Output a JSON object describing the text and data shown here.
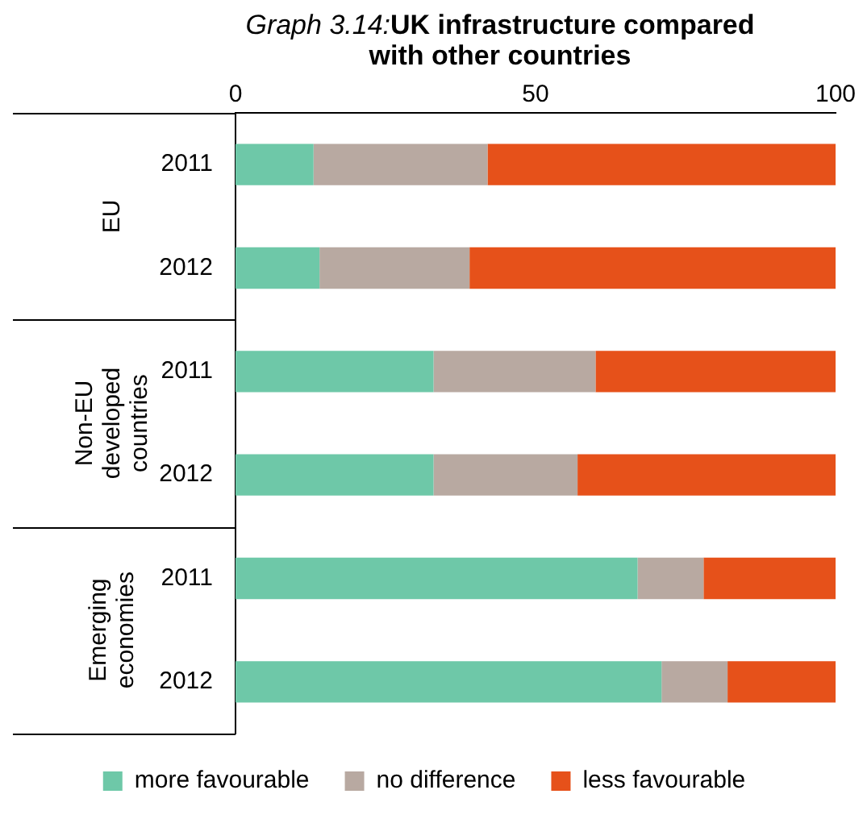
{
  "chart_data": {
    "type": "bar",
    "orientation": "horizontal",
    "stacked": true,
    "title": "Graph 3.14:UK infrastructure compared with other countries",
    "categories": [
      "2011",
      "2012",
      "2011",
      "2012",
      "2011",
      "2012"
    ],
    "series": [
      {
        "name": "more favourable",
        "color": "#6ec8a8",
        "values": [
          13,
          14,
          33,
          33,
          67,
          71
        ]
      },
      {
        "name": "no difference",
        "color": "#b8a9a1",
        "values": [
          29,
          25,
          27,
          24,
          11,
          11
        ]
      },
      {
        "name": "less favourable",
        "color": "#e6511a",
        "values": [
          58,
          61,
          40,
          43,
          22,
          18
        ]
      }
    ],
    "xlim": [
      0,
      100
    ],
    "xticks": [
      0,
      50,
      100
    ],
    "legend": "bottom",
    "annotations": [
      "EU",
      "Non-EU developed countries",
      "Emerging economies"
    ]
  }
}
